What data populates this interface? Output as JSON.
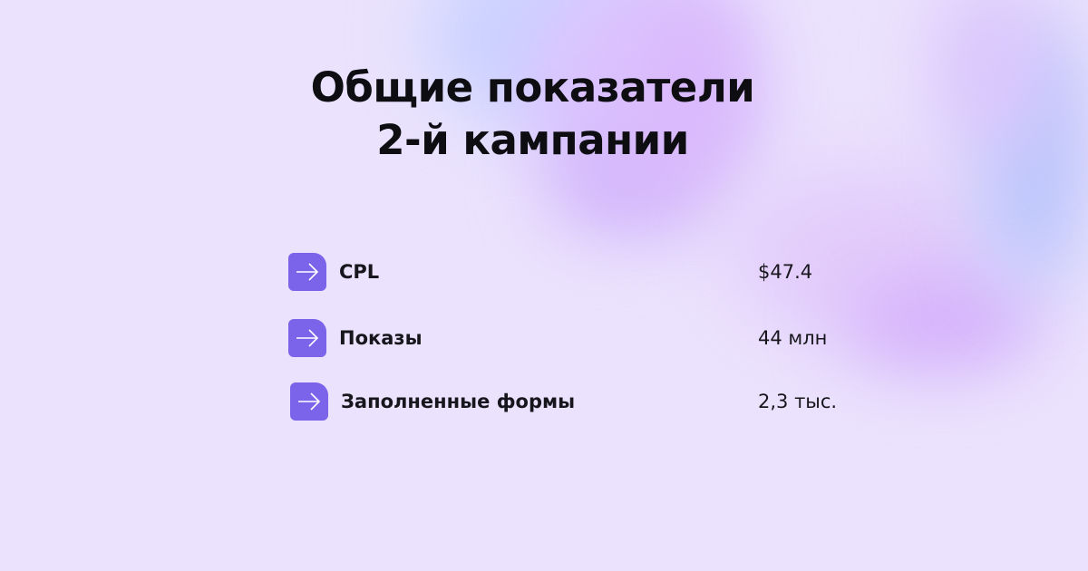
{
  "title_line1": "Общие показатели",
  "title_line2": "2-й кампании",
  "accent_color": "#7b64e9",
  "metrics": [
    {
      "icon": "arrow-right-icon",
      "label": "CPL",
      "value": "$47.4"
    },
    {
      "icon": "arrow-right-icon",
      "label": "Показы",
      "value": "44 млн"
    },
    {
      "icon": "arrow-right-icon",
      "label": "Заполненные формы",
      "value": "2,3 тыс."
    }
  ]
}
